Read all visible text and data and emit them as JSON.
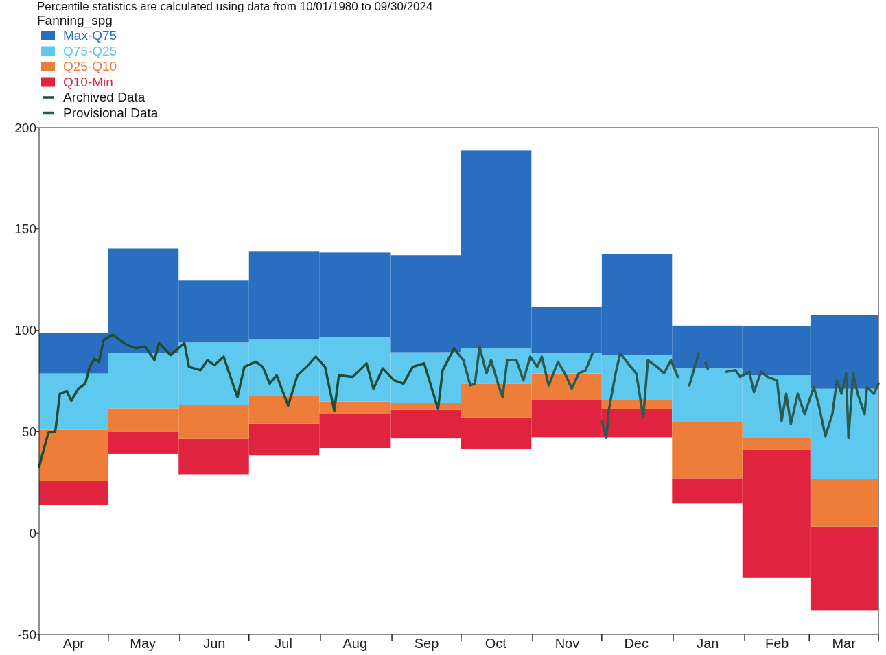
{
  "chart_data": {
    "type": "bar",
    "title": "Percentile statistics are calculated using data from 10/01/1980 to 09/30/2024",
    "legend_title": "Fanning_spg",
    "legend": "top left",
    "x": [
      "2024-04-16",
      "2024-05-16",
      "2024-06-16",
      "2024-07-16",
      "2024-08-16",
      "2024-09-16",
      "2024-10-16",
      "2024-11-16",
      "2024-12-16",
      "2025-01-16",
      "2025-02-15",
      "2025-03-16"
    ],
    "xlim": [
      "2024-04-01",
      "2025-03-31"
    ],
    "xticks": [
      {
        "value": "2024-04-01",
        "label": null
      },
      {
        "value": "2024-04-16",
        "label": "Apr"
      },
      {
        "value": "2024-05-01",
        "label": null
      },
      {
        "value": "2024-05-16",
        "label": "May"
      },
      {
        "value": "2024-06-01",
        "label": null
      },
      {
        "value": "2024-06-16",
        "label": "Jun"
      },
      {
        "value": "2024-07-01",
        "label": null
      },
      {
        "value": "2024-07-16",
        "label": "Jul"
      },
      {
        "value": "2024-08-01",
        "label": null
      },
      {
        "value": "2024-08-16",
        "label": "Aug"
      },
      {
        "value": "2024-09-01",
        "label": null
      },
      {
        "value": "2024-09-16",
        "label": "Sep"
      },
      {
        "value": "2024-10-01",
        "label": null
      },
      {
        "value": "2024-10-16",
        "label": "Oct"
      },
      {
        "value": "2024-11-01",
        "label": null
      },
      {
        "value": "2024-11-16",
        "label": "Nov"
      },
      {
        "value": "2024-12-01",
        "label": null
      },
      {
        "value": "2024-12-16",
        "label": "Dec"
      },
      {
        "value": "2025-01-01",
        "label": null
      },
      {
        "value": "2025-01-16",
        "label": "Jan"
      },
      {
        "value": "2025-02-01",
        "label": null
      },
      {
        "value": "2025-02-15",
        "label": "Feb"
      },
      {
        "value": "2025-03-01",
        "label": null
      },
      {
        "value": "2025-03-16",
        "label": "Mar"
      },
      {
        "value": "2025-03-31",
        "label": null
      }
    ],
    "ylim": [
      -50,
      200
    ],
    "yticks": [
      -50,
      0,
      50,
      100,
      150,
      200
    ],
    "series": [
      {
        "name": "Q10-Min",
        "color": "#e0243f",
        "base": [
          13.7,
          39,
          29,
          38.2,
          42,
          46.7,
          41.5,
          47.3,
          47.3,
          14.5,
          -22.2,
          -38.3
        ],
        "values": [
          12,
          11,
          17.5,
          15.8,
          16.7,
          14.1,
          15.5,
          18.4,
          13.9,
          12.5,
          63.4,
          41.5
        ]
      },
      {
        "name": "Q25-Q10",
        "color": "#ee7d3a",
        "base": [
          25.7,
          50,
          46.5,
          54,
          58.7,
          60.8,
          57,
          65.7,
          61.2,
          27,
          41.2,
          3.2
        ],
        "values": [
          25.3,
          11.5,
          16.8,
          13.7,
          6.1,
          3.5,
          16.7,
          13,
          4.5,
          27.8,
          5.8,
          23.3
        ]
      },
      {
        "name": "Q75-Q25",
        "color": "#5ec8ef",
        "base": [
          51,
          61.5,
          63.3,
          67.7,
          64.8,
          64.3,
          73.7,
          78.7,
          65.7,
          54.8,
          47,
          26.5
        ],
        "values": [
          27.7,
          27.5,
          30.7,
          28,
          31.7,
          24.9,
          17.3,
          10.3,
          22.1,
          26.4,
          30.8,
          44.7
        ]
      },
      {
        "name": "Max-Q75",
        "color": "#2a6fbf",
        "base": [
          78.7,
          89,
          94,
          95.7,
          96.5,
          89.2,
          91,
          89,
          87.8,
          81.2,
          77.8,
          71.2
        ],
        "values": [
          20,
          51.3,
          30.8,
          43.3,
          41.8,
          47.8,
          97.7,
          22.7,
          49.7,
          21.1,
          24.2,
          36.3
        ]
      },
      {
        "name": "Archived Data",
        "type": "line",
        "color": "#1e4d33",
        "x": [
          "2024-04-01",
          "2024-04-05",
          "2024-04-08",
          "2024-04-10",
          "2024-04-13",
          "2024-04-15",
          "2024-04-18",
          "2024-04-21",
          "2024-04-23",
          "2024-04-25",
          "2024-04-27",
          "2024-04-29",
          "2024-05-03",
          "2024-05-09",
          "2024-05-13",
          "2024-05-17",
          "2024-05-21",
          "2024-05-23",
          "2024-05-28",
          "2024-06-03",
          "2024-06-05",
          "2024-06-10",
          "2024-06-13",
          "2024-06-16",
          "2024-06-20",
          "2024-06-26",
          "2024-06-29",
          "2024-07-04",
          "2024-07-07",
          "2024-07-10",
          "2024-07-13",
          "2024-07-18",
          "2024-07-22",
          "2024-07-26",
          "2024-07-30",
          "2024-08-03",
          "2024-08-07",
          "2024-08-09",
          "2024-08-15",
          "2024-08-18",
          "2024-08-21",
          "2024-08-24",
          "2024-08-28",
          "2024-09-02",
          "2024-09-06",
          "2024-09-10",
          "2024-09-15",
          "2024-09-21",
          "2024-09-23",
          "2024-09-28",
          "2024-09-30"
        ],
        "values": [
          32.8,
          49.5,
          50,
          68.7,
          70,
          65.3,
          71.2,
          73.7,
          82,
          86,
          84.5,
          95.3,
          97.8,
          92.8,
          91.2,
          92,
          85.3,
          93.7,
          87.8,
          93.7,
          82,
          80.3,
          85.3,
          82.8,
          87,
          67,
          82,
          84.5,
          82,
          73.7,
          77.8,
          62.8,
          77.8,
          82,
          87,
          82,
          60.3,
          77.8,
          77,
          80.3,
          83.7,
          71.2,
          81.2,
          75.3,
          73.7,
          82,
          83.7,
          61.2,
          80.3,
          91.2,
          88
        ]
      },
      {
        "name": "Provisional Data",
        "type": "line",
        "color": "#2a5a50",
        "x": [
          "2024-09-30",
          "2024-10-02",
          "2024-10-05",
          "2024-10-07",
          "2024-10-09",
          "2024-10-12",
          "2024-10-14",
          "2024-10-17",
          "2024-10-19",
          "2024-10-21",
          "2024-10-25",
          "2024-10-28",
          "2024-10-31",
          "2024-11-03",
          "2024-11-05",
          "2024-11-08",
          "2024-11-12",
          "2024-11-15",
          "2024-11-18",
          "2024-11-21",
          "2024-11-24",
          "2024-11-27",
          "2024-11-29",
          "2024-12-01",
          "2024-12-03",
          "2024-12-04",
          "2024-12-07",
          "2024-12-09",
          "2024-12-13",
          "2024-12-16",
          "2024-12-19",
          "2024-12-21",
          "2024-12-25",
          "2024-12-28",
          "2024-12-31",
          "2025-01-03",
          "2025-01-05",
          "2025-01-08",
          "2025-01-12",
          "2025-01-13",
          "2025-01-15",
          "2025-01-16",
          "2025-01-18",
          "2025-01-24",
          "2025-01-28",
          "2025-01-30",
          "2025-02-03",
          "2025-02-05",
          "2025-02-08",
          "2025-02-11",
          "2025-02-15",
          "2025-02-17",
          "2025-02-19",
          "2025-02-21",
          "2025-02-24",
          "2025-02-27",
          "2025-03-03",
          "2025-03-05",
          "2025-03-08",
          "2025-03-11",
          "2025-03-13",
          "2025-03-15",
          "2025-03-17",
          "2025-03-18",
          "2025-03-20",
          "2025-03-22",
          "2025-03-25",
          "2025-03-26",
          "2025-03-29",
          "2025-03-31"
        ],
        "values": [
          88,
          85.3,
          72.8,
          73.7,
          92,
          78.7,
          85.3,
          73.7,
          67,
          85.3,
          85.3,
          75.3,
          87,
          82,
          87,
          72.8,
          84.5,
          78.7,
          71.2,
          78.7,
          80.3,
          88.7,
          null,
          55.3,
          47,
          60.3,
          78.7,
          88.7,
          82.8,
          78.7,
          57,
          85.3,
          82,
          78.7,
          85.3,
          77,
          null,
          72.8,
          88.7,
          null,
          84,
          81,
          null,
          79.5,
          80.3,
          77,
          79.5,
          69.5,
          79.5,
          77,
          75.3,
          55.3,
          68.7,
          53.7,
          68.7,
          58.7,
          72,
          63.7,
          47.8,
          58.7,
          75.3,
          68.7,
          78.7,
          47,
          78.7,
          68.7,
          58.7,
          72,
          68.7,
          73.7
        ]
      }
    ]
  }
}
